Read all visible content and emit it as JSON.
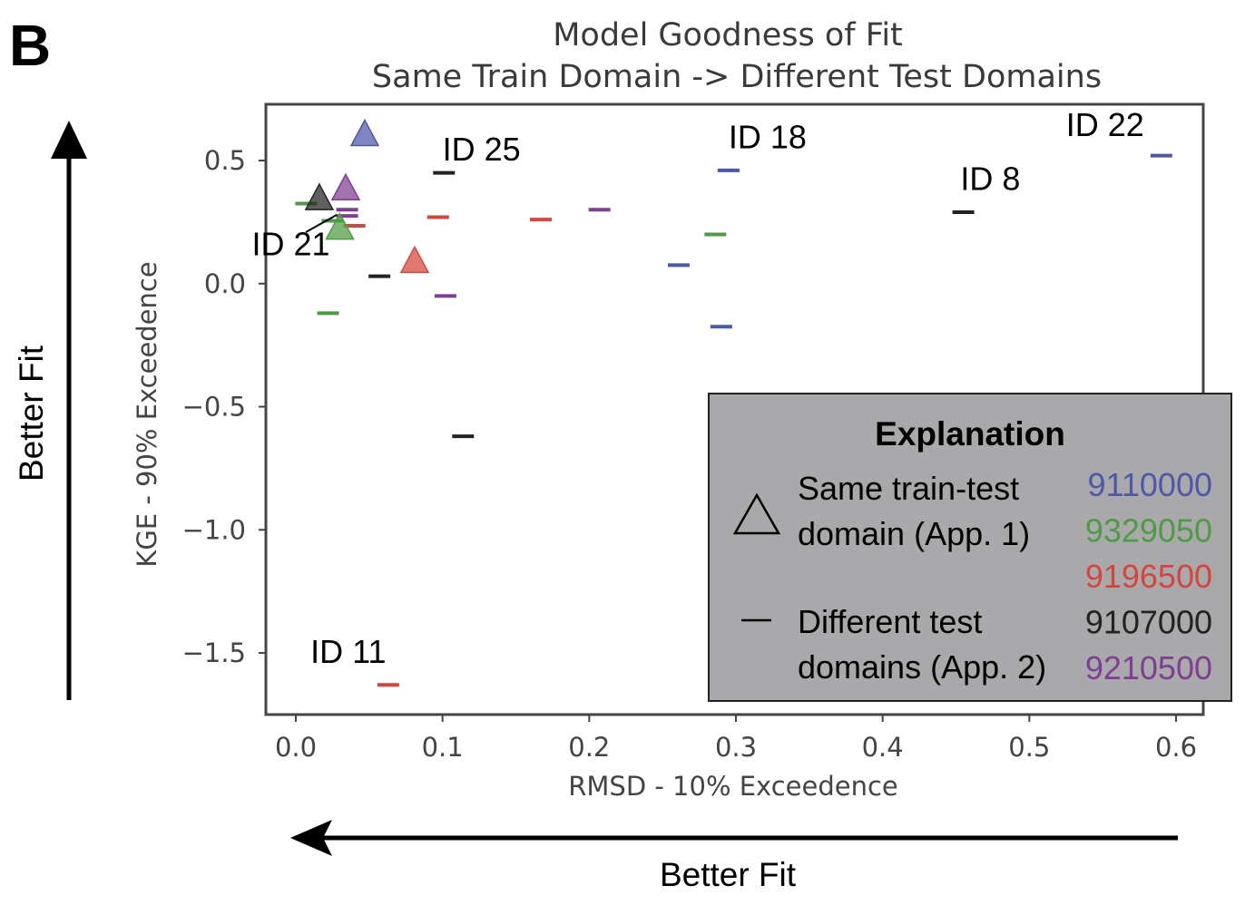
{
  "panel_label": "B",
  "chart_data": {
    "type": "scatter",
    "title": [
      "Model Goodness of Fit",
      "Same Train Domain -> Different Test Domains"
    ],
    "xlabel": "RMSD - 10% Exceedence",
    "ylabel": "KGE - 90% Exceedence",
    "xlim": [
      -0.02,
      0.62
    ],
    "ylim": [
      -1.75,
      0.72
    ],
    "xticks": [
      0.0,
      0.1,
      0.2,
      0.3,
      0.4,
      0.5,
      0.6
    ],
    "xtick_labels": [
      "0.0",
      "0.1",
      "0.2",
      "0.3",
      "0.4",
      "0.5",
      "0.6"
    ],
    "yticks": [
      0.5,
      0.0,
      -0.5,
      -1.0,
      -1.5
    ],
    "ytick_labels": [
      "0.5",
      "0.0",
      "−0.5",
      "−1.0",
      "−1.5"
    ],
    "grid": false,
    "legend_placement": "lower-right",
    "series": [
      {
        "name": "9110000",
        "color": "#4c58a8",
        "same_domain": [
          {
            "x": 0.047,
            "y": 0.6
          }
        ],
        "different_domains": [
          {
            "x": 0.295,
            "y": 0.46
          },
          {
            "x": 0.59,
            "y": 0.52
          },
          {
            "x": 0.261,
            "y": 0.075
          },
          {
            "x": 0.29,
            "y": -0.175
          }
        ]
      },
      {
        "name": "9329050",
        "color": "#4f9a45",
        "same_domain": [
          {
            "x": 0.03,
            "y": 0.22
          }
        ],
        "different_domains": [
          {
            "x": 0.007,
            "y": 0.325
          },
          {
            "x": 0.022,
            "y": -0.12
          },
          {
            "x": 0.286,
            "y": 0.2
          },
          {
            "x": 0.025,
            "y": 0.255
          }
        ]
      },
      {
        "name": "9196500",
        "color": "#d6453d",
        "same_domain": [
          {
            "x": 0.081,
            "y": 0.085
          }
        ],
        "different_domains": [
          {
            "x": 0.097,
            "y": 0.27
          },
          {
            "x": 0.167,
            "y": 0.26
          },
          {
            "x": 0.04,
            "y": 0.235
          },
          {
            "x": 0.063,
            "y": -1.63
          }
        ]
      },
      {
        "name": "9107000",
        "color": "#222222",
        "same_domain": [
          {
            "x": 0.016,
            "y": 0.34
          }
        ],
        "different_domains": [
          {
            "x": 0.101,
            "y": 0.45
          },
          {
            "x": 0.455,
            "y": 0.29
          },
          {
            "x": 0.057,
            "y": 0.03
          },
          {
            "x": 0.114,
            "y": -0.62
          }
        ]
      },
      {
        "name": "9210500",
        "color": "#7f3d93",
        "same_domain": [
          {
            "x": 0.034,
            "y": 0.38
          }
        ],
        "different_domains": [
          {
            "x": 0.035,
            "y": 0.3
          },
          {
            "x": 0.035,
            "y": 0.275
          },
          {
            "x": 0.207,
            "y": 0.3
          },
          {
            "x": 0.102,
            "y": -0.05
          }
        ]
      }
    ],
    "annotations": [
      {
        "text": "ID 25",
        "x": 0.1,
        "y": 0.5
      },
      {
        "text": "ID 18",
        "x": 0.295,
        "y": 0.55
      },
      {
        "text": "ID 22",
        "x": 0.525,
        "y": 0.6
      },
      {
        "text": "ID 8",
        "x": 0.453,
        "y": 0.38
      },
      {
        "text": "ID 21",
        "x": -0.03,
        "y": 0.115
      },
      {
        "text": "ID 11",
        "x": 0.01,
        "y": -1.54
      }
    ],
    "legend": {
      "title": "Explanation",
      "same_label": [
        "Same train-test",
        "domain (App. 1)"
      ],
      "diff_label": [
        "Different test",
        "domains  (App. 2)"
      ]
    }
  },
  "side_labels": {
    "vertical": "Better Fit",
    "horizontal": "Better Fit"
  }
}
